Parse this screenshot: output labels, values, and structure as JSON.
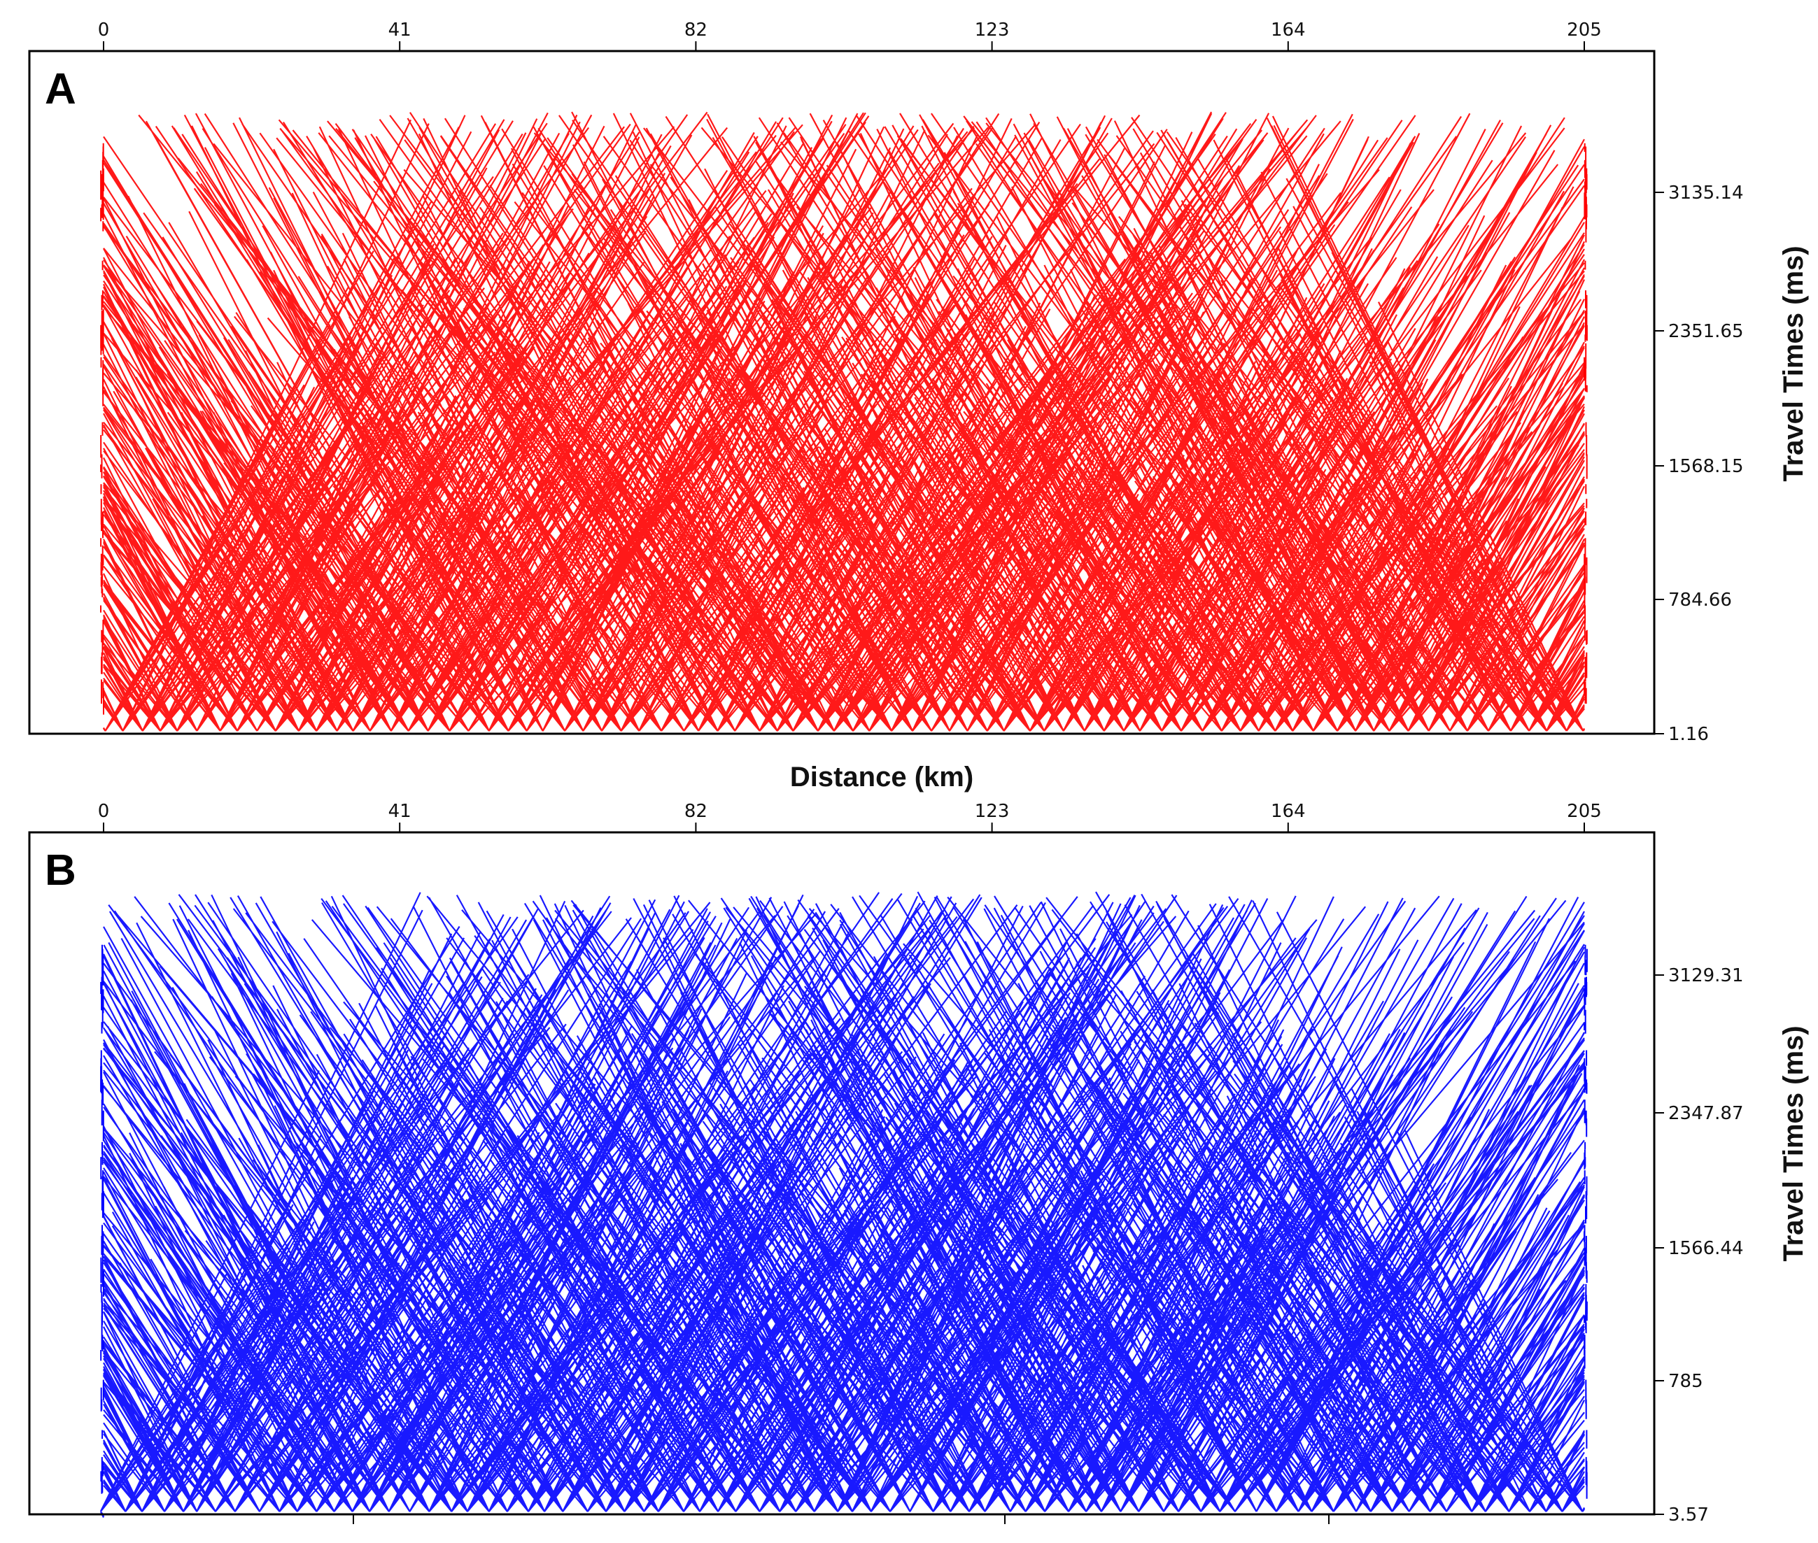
{
  "chart_data": [
    {
      "panel": "A",
      "type": "line",
      "color": "#ff0000",
      "x_ticks": [
        "0",
        "41",
        "82",
        "123",
        "164",
        "205"
      ],
      "x_tick_values": [
        0,
        41,
        82,
        123,
        164,
        205
      ],
      "xlim": [
        0,
        205
      ],
      "x_axis_position": "top",
      "xlabel": "Distance (km)",
      "y_ticks": [
        "1.16",
        "784.66",
        "1568.15",
        "2351.65",
        "3135.14"
      ],
      "y_tick_values": [
        1.16,
        784.66,
        1568.15,
        2351.65,
        3135.14
      ],
      "ylim": [
        1.16,
        3900
      ],
      "y_axis_position": "right",
      "ylabel": "Travel Times (ms)",
      "series_description": "ray-traced travel-time curves diverging from shot points"
    },
    {
      "panel": "B",
      "type": "line",
      "color": "#0000ff",
      "x_ticks": [
        "0",
        "41",
        "82",
        "123",
        "164",
        "205"
      ],
      "x_tick_values": [
        0,
        41,
        82,
        123,
        164,
        205
      ],
      "xlim": [
        0,
        205
      ],
      "x_axis_position": "top",
      "xlabel": "",
      "y_ticks": [
        "3.57",
        "785",
        "1566.44",
        "2347.87",
        "3129.31"
      ],
      "y_tick_values": [
        3.57,
        785,
        1566.44,
        2347.87,
        3129.31
      ],
      "ylim": [
        3.57,
        3900
      ],
      "y_axis_position": "right",
      "ylabel": "Travel Times (ms)",
      "series_description": "ray-traced travel-time curves diverging from shot points"
    }
  ],
  "panels": {
    "a": {
      "letter": "A",
      "xlabel": "Distance (km)",
      "ylabel": "Travel Times (ms)"
    },
    "b": {
      "letter": "B",
      "ylabel": "Travel Times (ms)"
    }
  },
  "colors": {
    "panel_a": "#ff0000",
    "panel_b": "#0000ff"
  }
}
